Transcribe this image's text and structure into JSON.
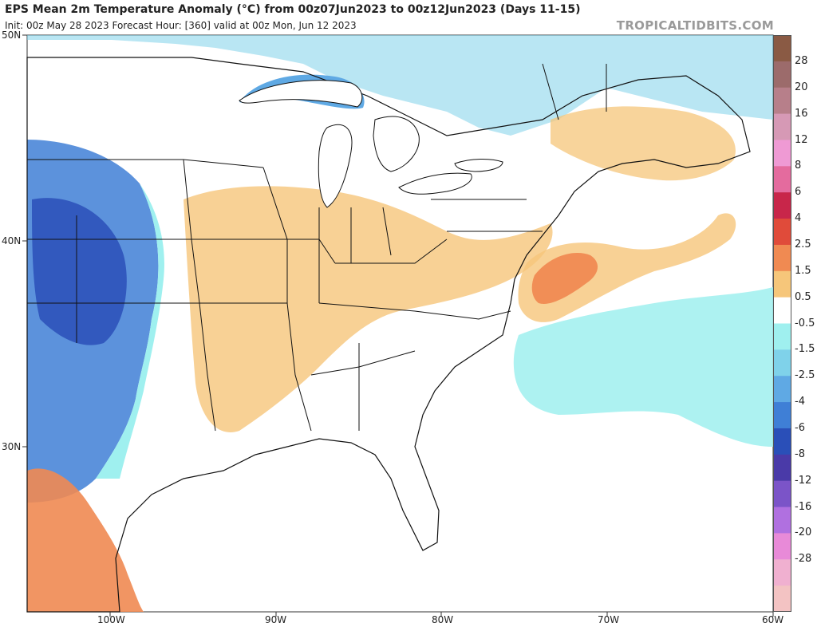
{
  "header": {
    "title": "EPS Mean 2m Temperature Anomaly (°C) from 00z07Jun2023 to 00z12Jun2023 (Days 11-15)",
    "subtitle": "Init: 00z May 28 2023   Forecast Hour: [360]   valid at 00z Mon, Jun 12 2023",
    "watermark": "TROPICALTIDBITS.COM"
  },
  "map": {
    "lat_labels": [
      "50N",
      "40N",
      "30N"
    ],
    "lon_labels": [
      "100W",
      "90W",
      "80W",
      "70W",
      "60W"
    ],
    "extent": {
      "lon_min": -105,
      "lon_max": -60,
      "lat_min": 22,
      "lat_max": 50
    },
    "colors": {
      "ocean": "#ffffff",
      "land": "#ffffff",
      "state_border": "#111111",
      "county_border": "#9a9a9a"
    }
  },
  "colorbar": {
    "labels": [
      "28",
      "20",
      "16",
      "12",
      "8",
      "6",
      "4",
      "2.5",
      "1.5",
      "0.5",
      "-0.5",
      "-1.5",
      "-2.5",
      "-4",
      "-6",
      "-8",
      "-12",
      "-16",
      "-20",
      "-28"
    ],
    "colors": [
      "#8a5a44",
      "#9c6b6b",
      "#b77f8a",
      "#d699b5",
      "#ef9ad4",
      "#e46b9e",
      "#c8264a",
      "#e04b3a",
      "#f08a52",
      "#f6c67a",
      "#ffffff",
      "#9ff0ef",
      "#7fd2ea",
      "#5fa9e4",
      "#3f7fd6",
      "#2a4fb8",
      "#4a3aa8",
      "#7b54c8",
      "#b070e0",
      "#e88ad8",
      "#f0b0d0",
      "#f3c3c3"
    ]
  },
  "anomaly_regions": [
    {
      "name": "southwest-cold",
      "anomaly": -4,
      "color": "#3f7fd6"
    },
    {
      "name": "southwest-cold-core",
      "anomaly": -6,
      "color": "#2a4fb8"
    },
    {
      "name": "plains-cool",
      "anomaly": -1.5,
      "color": "#7fd2ea"
    },
    {
      "name": "mexico-warm",
      "anomaly": 2.5,
      "color": "#f08a52"
    },
    {
      "name": "midwest-warm",
      "anomaly": 1.5,
      "color": "#f6c67a"
    },
    {
      "name": "atlantic-warm",
      "anomaly": 2.5,
      "color": "#f08a52"
    },
    {
      "name": "atlantic-cool",
      "anomaly": -1.5,
      "color": "#7fd2ea"
    },
    {
      "name": "canada-cool",
      "anomaly": -1.5,
      "color": "#7fd2ea"
    },
    {
      "name": "lake-superior-cold",
      "anomaly": -2.5,
      "color": "#5fa9e4"
    },
    {
      "name": "maritimes-warm",
      "anomaly": 1.5,
      "color": "#f6c67a"
    }
  ]
}
